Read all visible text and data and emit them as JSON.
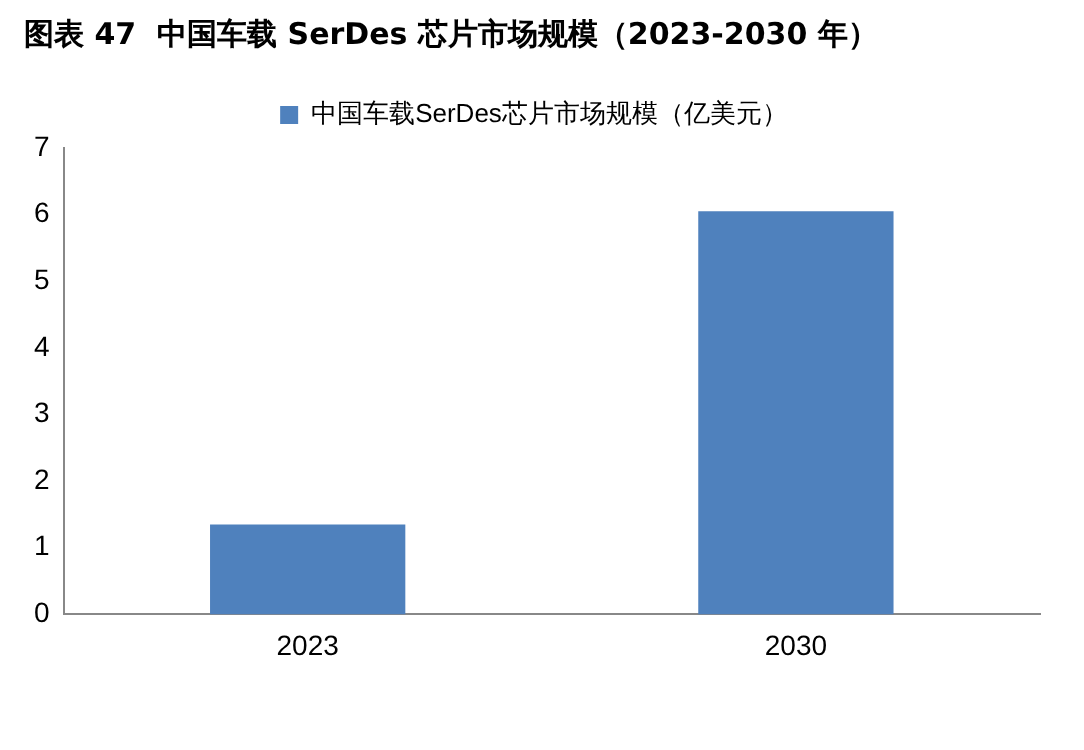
{
  "chart_data": {
    "type": "bar",
    "title": "图表 47  中国车载 SerDes 芯片市场规模（2023-2030 年）",
    "categories": [
      "2023",
      "2030"
    ],
    "series": [
      {
        "name": "中国车载SerDes芯片市场规模（亿美元）",
        "color": "#4f81bd",
        "values": [
          1.35,
          6.05
        ]
      }
    ],
    "ylim": [
      0,
      7
    ],
    "yticks": [
      0,
      1,
      2,
      3,
      4,
      5,
      6,
      7
    ],
    "grid": false,
    "legend": "top"
  }
}
